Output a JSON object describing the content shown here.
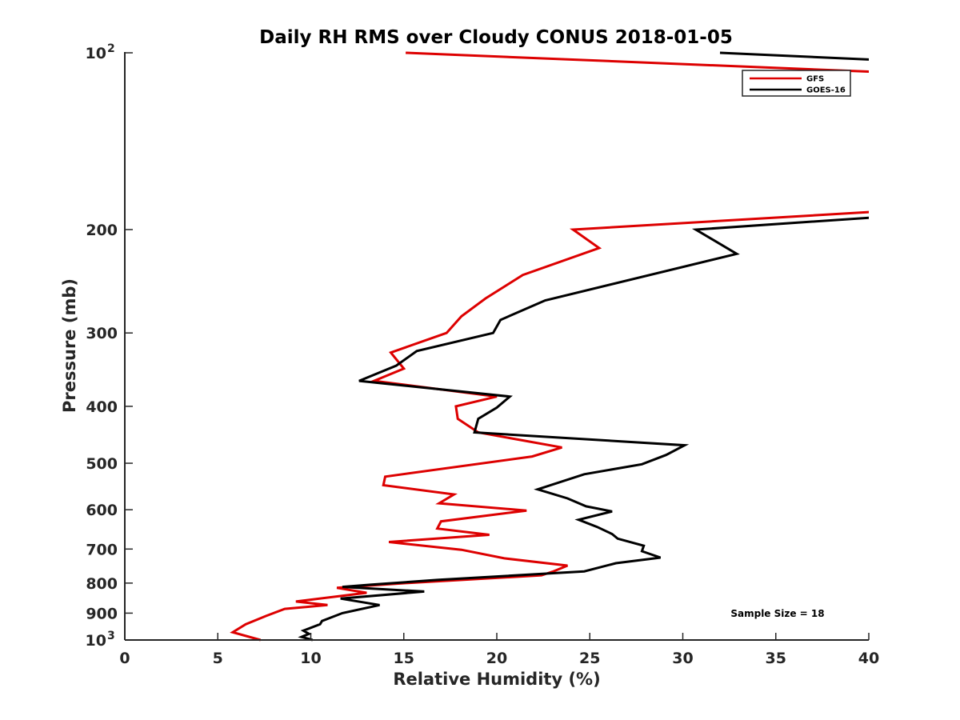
{
  "chart_data": {
    "type": "line",
    "title": "Daily RH RMS over Cloudy CONUS 2018-01-05",
    "xlabel": "Relative Humidity (%)",
    "ylabel": "Pressure (mb)",
    "xlim": [
      0,
      40
    ],
    "ylim": [
      100,
      1000
    ],
    "y_scale": "log",
    "y_reversed": true,
    "grid": false,
    "legend_position": "top-right",
    "x_ticks": [
      "0",
      "5",
      "10",
      "15",
      "20",
      "25",
      "30",
      "35",
      "40"
    ],
    "y_ticks": [
      {
        "value": 100,
        "label": "10",
        "sup": "2"
      },
      {
        "value": 200,
        "label": "200",
        "sup": ""
      },
      {
        "value": 300,
        "label": "300",
        "sup": ""
      },
      {
        "value": 400,
        "label": "400",
        "sup": ""
      },
      {
        "value": 500,
        "label": "500",
        "sup": ""
      },
      {
        "value": 600,
        "label": "600",
        "sup": ""
      },
      {
        "value": 700,
        "label": "700",
        "sup": ""
      },
      {
        "value": 800,
        "label": "800",
        "sup": ""
      },
      {
        "value": 900,
        "label": "900",
        "sup": ""
      },
      {
        "value": 1000,
        "label": "10",
        "sup": "3"
      }
    ],
    "series": [
      {
        "name": "GFS",
        "color": "#dd0000",
        "points": [
          [
            15.1,
            100
          ],
          [
            41.0,
            108
          ],
          [
            41.0,
            186
          ],
          [
            24.1,
            200
          ],
          [
            25.5,
            215
          ],
          [
            21.4,
            239
          ],
          [
            19.4,
            262
          ],
          [
            18.1,
            281
          ],
          [
            17.3,
            300
          ],
          [
            14.3,
            324
          ],
          [
            15.0,
            345
          ],
          [
            13.4,
            362
          ],
          [
            20.0,
            385
          ],
          [
            17.8,
            400
          ],
          [
            17.9,
            420
          ],
          [
            19.0,
            443
          ],
          [
            23.5,
            470
          ],
          [
            21.9,
            487
          ],
          [
            14.0,
            527
          ],
          [
            13.9,
            545
          ],
          [
            17.7,
            565
          ],
          [
            16.9,
            585
          ],
          [
            21.6,
            602
          ],
          [
            17.0,
            628
          ],
          [
            16.8,
            646
          ],
          [
            19.6,
            662
          ],
          [
            14.2,
            681
          ],
          [
            18.1,
            702
          ],
          [
            20.4,
            726
          ],
          [
            23.8,
            747
          ],
          [
            23.0,
            765
          ],
          [
            22.4,
            776
          ],
          [
            15.1,
            800
          ],
          [
            11.4,
            815
          ],
          [
            13.0,
            831
          ],
          [
            9.2,
            860
          ],
          [
            10.9,
            872
          ],
          [
            8.6,
            885
          ],
          [
            7.6,
            910
          ],
          [
            6.5,
            940
          ],
          [
            5.8,
            970
          ],
          [
            7.3,
            1000
          ]
        ]
      },
      {
        "name": "GOES-16",
        "color": "#000000",
        "points": [
          [
            32.0,
            100
          ],
          [
            41.0,
            103
          ],
          [
            41.0,
            190
          ],
          [
            30.7,
            200
          ],
          [
            32.9,
            220
          ],
          [
            22.6,
            264
          ],
          [
            20.2,
            285
          ],
          [
            19.8,
            300
          ],
          [
            15.7,
            322
          ],
          [
            14.6,
            341
          ],
          [
            12.6,
            362
          ],
          [
            20.7,
            385
          ],
          [
            20.0,
            402
          ],
          [
            19.0,
            420
          ],
          [
            18.8,
            443
          ],
          [
            30.1,
            466
          ],
          [
            29.1,
            484
          ],
          [
            27.8,
            502
          ],
          [
            24.7,
            522
          ],
          [
            22.2,
            554
          ],
          [
            23.8,
            574
          ],
          [
            24.8,
            592
          ],
          [
            26.2,
            604
          ],
          [
            24.4,
            624
          ],
          [
            25.4,
            642
          ],
          [
            26.2,
            660
          ],
          [
            26.5,
            672
          ],
          [
            27.9,
            691
          ],
          [
            27.8,
            706
          ],
          [
            28.8,
            724
          ],
          [
            26.4,
            740
          ],
          [
            24.7,
            764
          ],
          [
            16.8,
            790
          ],
          [
            13.2,
            805
          ],
          [
            11.7,
            812
          ],
          [
            16.1,
            827
          ],
          [
            11.6,
            850
          ],
          [
            13.7,
            872
          ],
          [
            11.7,
            900
          ],
          [
            10.6,
            928
          ],
          [
            10.5,
            940
          ],
          [
            9.6,
            964
          ],
          [
            9.9,
            976
          ],
          [
            9.5,
            988
          ],
          [
            10.1,
            1000
          ]
        ]
      }
    ],
    "legend": [
      {
        "name": "GFS",
        "color": "#dd0000"
      },
      {
        "name": "GOES-16",
        "color": "#000000"
      }
    ],
    "annotation": "Sample Size = 18"
  }
}
